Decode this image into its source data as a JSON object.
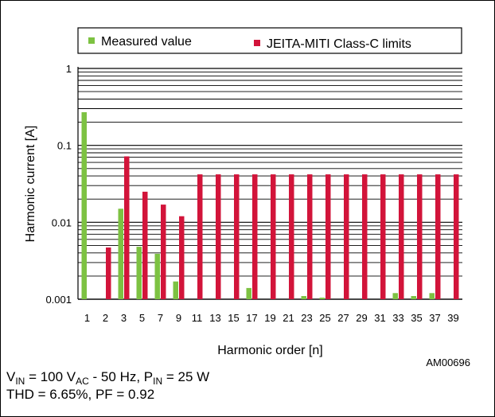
{
  "chart_data": {
    "type": "bar",
    "yscale": "log",
    "ylim": [
      0.001,
      1
    ],
    "ylabel": "Harmonic current [A]",
    "xlabel": "Harmonic order [n]",
    "y_tick_labels": [
      "0.001",
      "0.01",
      "0.1",
      "1"
    ],
    "y_tick_values": [
      0.001,
      0.01,
      0.1,
      1
    ],
    "categories": [
      "1",
      "2",
      "3",
      "5",
      "7",
      "9",
      "11",
      "13",
      "15",
      "17",
      "19",
      "21",
      "23",
      "25",
      "27",
      "29",
      "31",
      "33",
      "35",
      "37",
      "39"
    ],
    "series": [
      {
        "name": "Measured value",
        "color": "#7dc242",
        "values": [
          0.27,
          0.001,
          0.015,
          0.0048,
          0.0039,
          0.0017,
          0.001,
          0.001,
          0.001,
          0.0014,
          0.001,
          0.001,
          0.0011,
          0.00105,
          0.001,
          0.001,
          0.001,
          0.0012,
          0.0011,
          0.0012,
          0.001
        ]
      },
      {
        "name": "JEITA-MITI Class-C limits",
        "color": "#d2143a",
        "values": [
          null,
          0.0047,
          0.072,
          0.025,
          0.017,
          0.012,
          0.042,
          0.042,
          0.042,
          0.042,
          0.042,
          0.042,
          0.042,
          0.042,
          0.042,
          0.042,
          0.042,
          0.042,
          0.042,
          0.042,
          0.042
        ]
      }
    ],
    "legend_position": "top",
    "grid": true
  },
  "figure_code": "AM00696",
  "conditions": {
    "line1": {
      "v_prefix": "V",
      "v_sub": "IN",
      "v_mid": " = 100 V",
      "v_unit_sub": "AC",
      "v_suffix": " - 50 Hz, P",
      "p_sub": "IN",
      "p_suffix": " = 25 W"
    },
    "line2": "THD = 6.65%, PF = 0.92"
  }
}
